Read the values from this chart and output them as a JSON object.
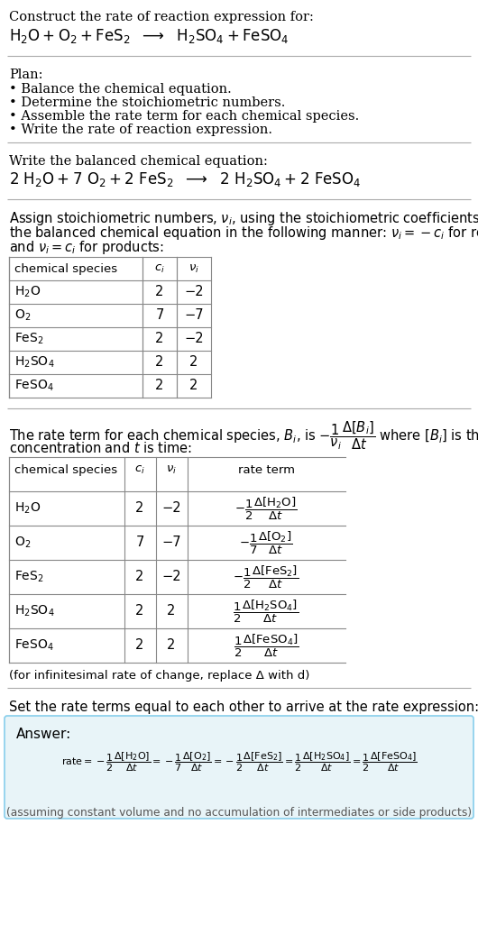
{
  "bg_color": "#ffffff",
  "text_color": "#000000",
  "title_line1": "Construct the rate of reaction expression for:",
  "plan_header": "Plan:",
  "plan_items": [
    "• Balance the chemical equation.",
    "• Determine the stoichiometric numbers.",
    "• Assemble the rate term for each chemical species.",
    "• Write the rate of reaction expression."
  ],
  "balanced_header": "Write the balanced chemical equation:",
  "table1_rows": [
    [
      "H₂O",
      "2",
      "−2"
    ],
    [
      "O₂",
      "7",
      "−7"
    ],
    [
      "FeS₂",
      "2",
      "−2"
    ],
    [
      "H₂SO₄",
      "2",
      "2"
    ],
    [
      "FeSO₄",
      "2",
      "2"
    ]
  ],
  "table2_rows": [
    [
      "H₂O",
      "2",
      "−2"
    ],
    [
      "O₂",
      "7",
      "−7"
    ],
    [
      "FeS₂",
      "2",
      "−2"
    ],
    [
      "H₂SO₄",
      "2",
      "2"
    ],
    [
      "FeSO₄",
      "2",
      "2"
    ]
  ],
  "infinitesimal_note": "(for infinitesimal rate of change, replace Δ with d)",
  "set_rate_text": "Set the rate terms equal to each other to arrive at the rate expression:",
  "answer_box_color": "#e8f4f8",
  "answer_box_border": "#87ceeb",
  "answer_label": "Answer:",
  "footnote": "(assuming constant volume and no accumulation of intermediates or side products)"
}
